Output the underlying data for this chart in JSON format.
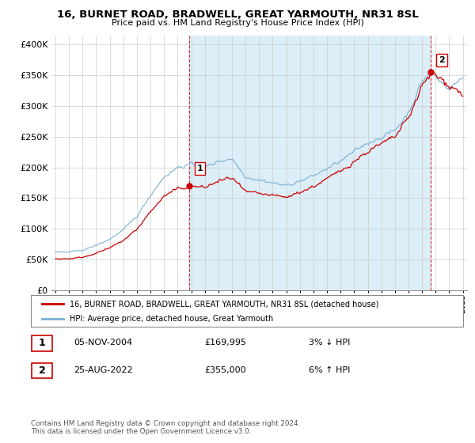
{
  "title": "16, BURNET ROAD, BRADWELL, GREAT YARMOUTH, NR31 8SL",
  "subtitle": "Price paid vs. HM Land Registry's House Price Index (HPI)",
  "ytick_vals": [
    0,
    50000,
    100000,
    150000,
    200000,
    250000,
    300000,
    350000,
    400000
  ],
  "ylim": [
    0,
    415000
  ],
  "sale1_date": "05-NOV-2004",
  "sale1_price": 169995,
  "sale1_x": 2004.846,
  "sale2_date": "25-AUG-2022",
  "sale2_price": 355000,
  "sale2_x": 2022.646,
  "legend_line1": "16, BURNET ROAD, BRADWELL, GREAT YARMOUTH, NR31 8SL (detached house)",
  "legend_line2": "HPI: Average price, detached house, Great Yarmouth",
  "table_row1": [
    "1",
    "05-NOV-2004",
    "£169,995",
    "3% ↓ HPI"
  ],
  "table_row2": [
    "2",
    "25-AUG-2022",
    "£355,000",
    "6% ↑ HPI"
  ],
  "footnote": "Contains HM Land Registry data © Crown copyright and database right 2024.\nThis data is licensed under the Open Government Licence v3.0.",
  "line_color_red": "#cc0000",
  "line_color_blue": "#7ab0d4",
  "fill_color": "#dceef7",
  "grid_color": "#cccccc",
  "xlim_left": 1994.7,
  "xlim_right": 2025.3
}
